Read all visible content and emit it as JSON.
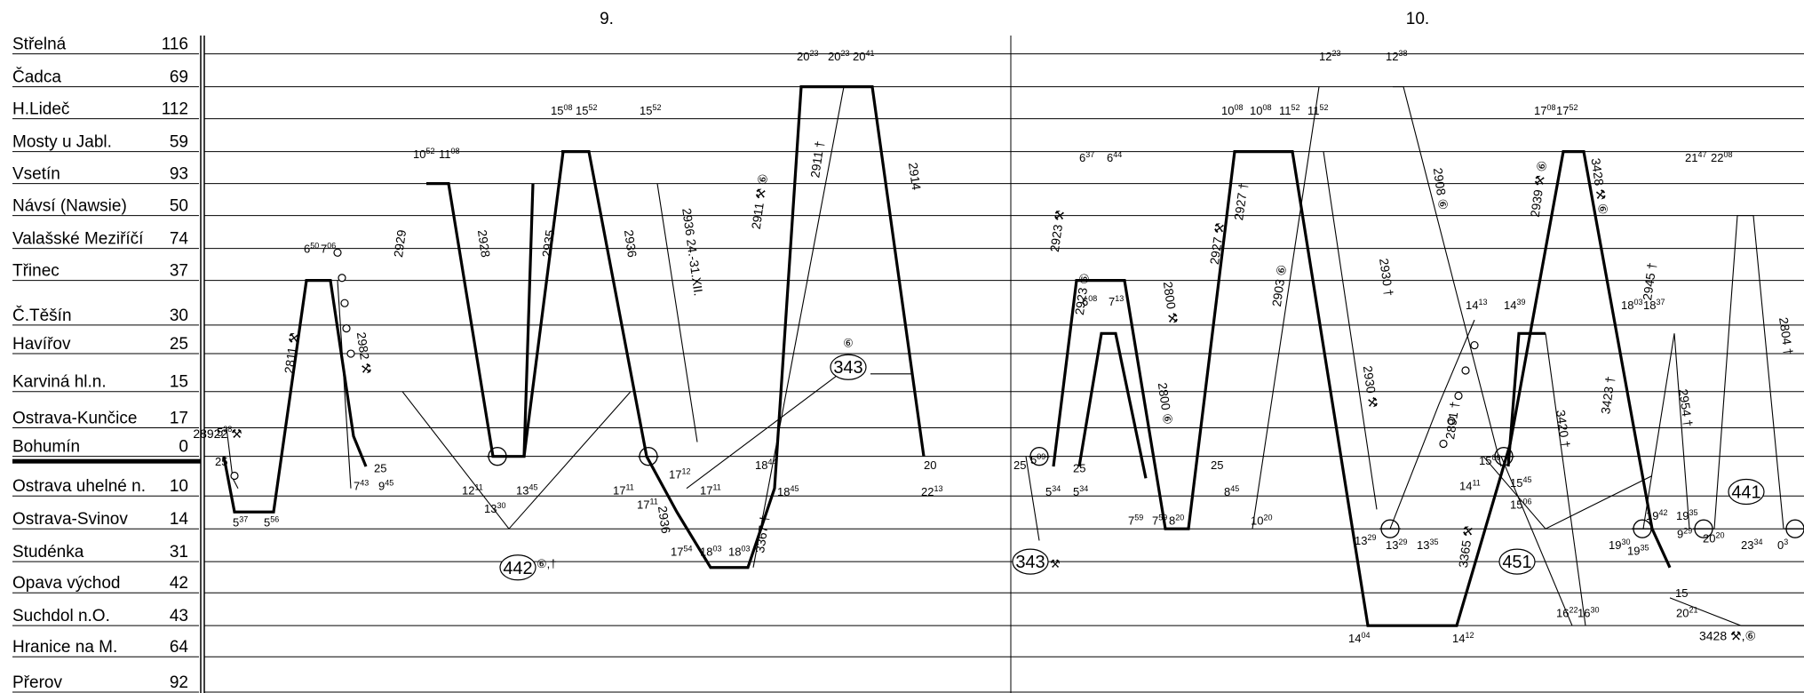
{
  "days": [
    "9.",
    "10."
  ],
  "stations": [
    {
      "name": "Střelná",
      "km": "116"
    },
    {
      "name": "Čadca",
      "km": "69"
    },
    {
      "name": "H.Lideč",
      "km": "112"
    },
    {
      "name": "Mosty u Jabl.",
      "km": "59"
    },
    {
      "name": "Vsetín",
      "km": "93"
    },
    {
      "name": "Návsí (Nawsie)",
      "km": "50"
    },
    {
      "name": "Valašské Meziříčí",
      "km": "74"
    },
    {
      "name": "Třinec",
      "km": "37"
    },
    {
      "name": "Č.Těšín",
      "km": "30"
    },
    {
      "name": "Havířov",
      "km": "25"
    },
    {
      "name": "Karviná hl.n.",
      "km": "15"
    },
    {
      "name": "Ostrava-Kunčice",
      "km": "17"
    },
    {
      "name": "Bohumín",
      "km": "0"
    },
    {
      "name": "Ostrava uhelné n.",
      "km": "10"
    },
    {
      "name": "Ostrava-Svinov",
      "km": "14"
    },
    {
      "name": "Studénka",
      "km": "31"
    },
    {
      "name": "Opava východ",
      "km": "42"
    },
    {
      "name": "Suchdol n.O.",
      "km": "43"
    },
    {
      "name": "Hranice na M.",
      "km": "64"
    },
    {
      "name": "Přerov",
      "km": "92"
    }
  ],
  "circulations": [
    "442",
    "343",
    "343",
    "451",
    "441"
  ],
  "circ_notes": [
    "⑥,†",
    "⑥",
    "⚒"
  ],
  "trains": [
    "28922 ⚒",
    "2811 ⚒",
    "2982 ⚒",
    "2929",
    "2928",
    "2935",
    "2936",
    "2936 24.-31.XII.",
    "2911 ⚒ ⑥",
    "2911 †",
    "2914",
    "3367 †",
    "2936",
    "2923 ⚒",
    "2923 ⑥",
    "2800 ⚒",
    "2800 ⑥",
    "2927 ⚒",
    "2927 †",
    "2903 ⑥",
    "2930 †",
    "2930 ⚒",
    "2908 ⑥",
    "2891 †",
    "3365 ⚒",
    "2939 ⚒ ⑥",
    "3428 ⚒ ⑥",
    "3420 †",
    "3423 †",
    "2945 †",
    "2954 †",
    "2804 †",
    "3428 ⚒,⑥"
  ],
  "times": [
    {
      "h": "5",
      "m": "28"
    },
    {
      "h": "25",
      "m": ""
    },
    {
      "h": "5",
      "m": "37"
    },
    {
      "h": "5",
      "m": "56"
    },
    {
      "h": "6",
      "m": "50"
    },
    {
      "h": "7",
      "m": "06"
    },
    {
      "h": "7",
      "m": "43"
    },
    {
      "h": "9",
      "m": "45"
    },
    {
      "h": "25",
      "m": ""
    },
    {
      "h": "10",
      "m": "52"
    },
    {
      "h": "11",
      "m": "08"
    },
    {
      "h": "12",
      "m": "11"
    },
    {
      "h": "13",
      "m": "30"
    },
    {
      "h": "13",
      "m": "45"
    },
    {
      "h": "15",
      "m": "08"
    },
    {
      "h": "15",
      "m": "52"
    },
    {
      "h": "15",
      "m": "52"
    },
    {
      "h": "17",
      "m": "11"
    },
    {
      "h": "17",
      "m": "11"
    },
    {
      "h": "17",
      "m": "12"
    },
    {
      "h": "17",
      "m": "11"
    },
    {
      "h": "17",
      "m": "54"
    },
    {
      "h": "18",
      "m": "03"
    },
    {
      "h": "18",
      "m": "03"
    },
    {
      "h": "18",
      "m": "44"
    },
    {
      "h": "18",
      "m": "45"
    },
    {
      "h": "20",
      "m": "23"
    },
    {
      "h": "20",
      "m": "23"
    },
    {
      "h": "20",
      "m": "41"
    },
    {
      "h": "20",
      "m": ""
    },
    {
      "h": "22",
      "m": "13"
    },
    {
      "h": "25",
      "m": ""
    },
    {
      "h": "5",
      "m": "09"
    },
    {
      "h": "5",
      "m": "34"
    },
    {
      "h": "5",
      "m": "34"
    },
    {
      "h": "25",
      "m": ""
    },
    {
      "h": "6",
      "m": "37"
    },
    {
      "h": "6",
      "m": "44"
    },
    {
      "h": "6",
      "m": "08"
    },
    {
      "h": "7",
      "m": "13"
    },
    {
      "h": "7",
      "m": "59"
    },
    {
      "h": "7",
      "m": "59"
    },
    {
      "h": "8",
      "m": "20"
    },
    {
      "h": "8",
      "m": "45"
    },
    {
      "h": "25",
      "m": ""
    },
    {
      "h": "10",
      "m": "20"
    },
    {
      "h": "10",
      "m": "08"
    },
    {
      "h": "10",
      "m": "08"
    },
    {
      "h": "11",
      "m": "52"
    },
    {
      "h": "11",
      "m": "52"
    },
    {
      "h": "12",
      "m": "23"
    },
    {
      "h": "12",
      "m": "38"
    },
    {
      "h": "13",
      "m": "29"
    },
    {
      "h": "13",
      "m": "29"
    },
    {
      "h": "13",
      "m": "35"
    },
    {
      "h": "14",
      "m": "04"
    },
    {
      "h": "14",
      "m": "12"
    },
    {
      "h": "14",
      "m": "13"
    },
    {
      "h": "14",
      "m": "39"
    },
    {
      "h": "14",
      "m": "11"
    },
    {
      "h": "15",
      "m": "06"
    },
    {
      "h": "15",
      "m": "45"
    },
    {
      "h": "15",
      "m": "06"
    },
    {
      "h": "17",
      "m": "08"
    },
    {
      "h": "17",
      "m": "52"
    },
    {
      "h": "18",
      "m": "03"
    },
    {
      "h": "18",
      "m": "37"
    },
    {
      "h": "16",
      "m": "22"
    },
    {
      "h": "16",
      "m": "30"
    },
    {
      "h": "19",
      "m": "30"
    },
    {
      "h": "19",
      "m": "35"
    },
    {
      "h": "19",
      "m": "42"
    },
    {
      "h": "19",
      "m": "35"
    },
    {
      "h": "9",
      "m": "29"
    },
    {
      "h": "20",
      "m": "20"
    },
    {
      "h": "15",
      "m": ""
    },
    {
      "h": "20",
      "m": "21"
    },
    {
      "h": "21",
      "m": "47"
    },
    {
      "h": "22",
      "m": "08"
    },
    {
      "h": "23",
      "m": "34"
    },
    {
      "h": "0",
      "m": "3"
    }
  ]
}
